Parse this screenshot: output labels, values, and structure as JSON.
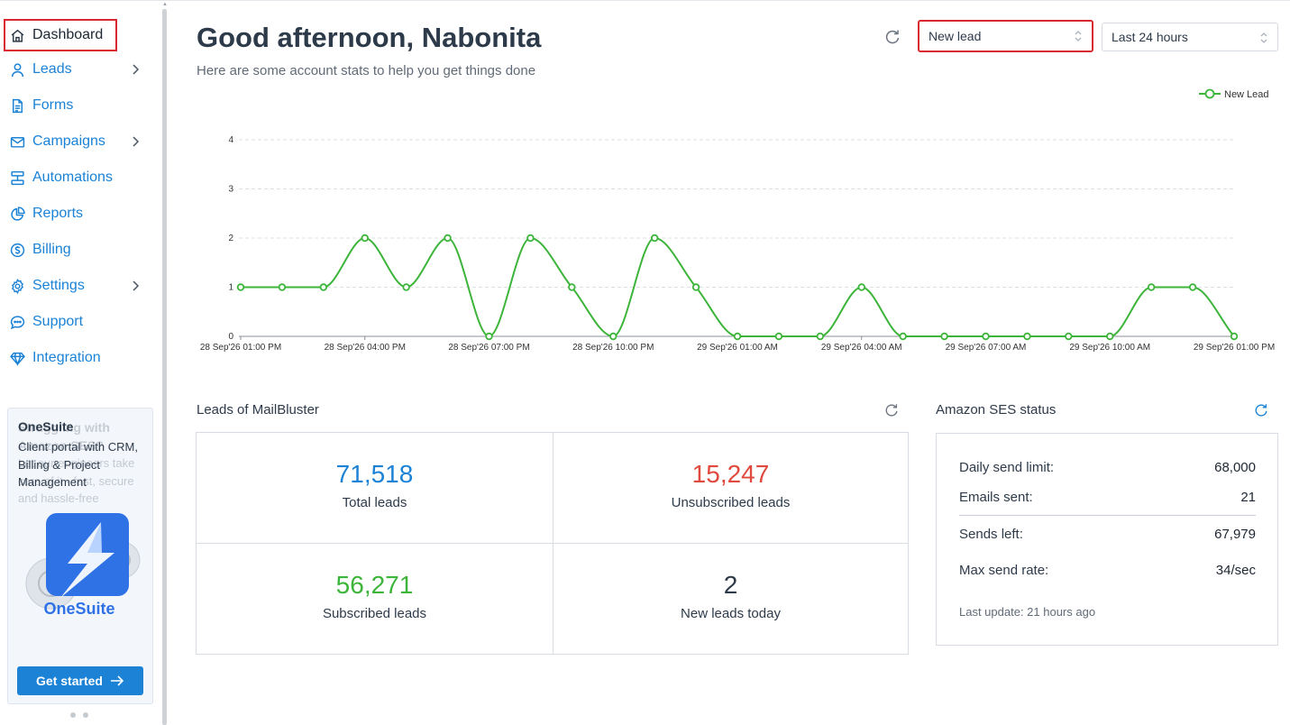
{
  "sidebar": {
    "items": [
      {
        "label": "Dashboard",
        "icon": "home-icon",
        "active": true
      },
      {
        "label": "Leads",
        "icon": "user-icon",
        "has_submenu": true
      },
      {
        "label": "Forms",
        "icon": "file-icon"
      },
      {
        "label": "Campaigns",
        "icon": "mail-icon",
        "has_submenu": true
      },
      {
        "label": "Automations",
        "icon": "flow-icon"
      },
      {
        "label": "Reports",
        "icon": "pie-chart-icon"
      },
      {
        "label": "Billing",
        "icon": "dollar-icon"
      },
      {
        "label": "Settings",
        "icon": "gear-icon",
        "has_submenu": true
      },
      {
        "label": "Support",
        "icon": "chat-icon"
      },
      {
        "label": "Integration",
        "icon": "diamond-icon"
      }
    ],
    "promo": {
      "title": "OneSuite",
      "description": "Client portal with CRM, Billing & Project Management",
      "ghost_title": "Struggling with Amazon SES?",
      "ghost_text": "Let our engineers take care of it - fast, secure and hassle-free",
      "logo_text": "OneSuite",
      "button_label": "Get started"
    }
  },
  "header": {
    "greeting": "Good afternoon, Nabonita",
    "subtitle": "Here are some account stats to help you get things done",
    "metric_select": "New lead",
    "range_select": "Last 24 hours"
  },
  "chart_data": {
    "type": "line",
    "series": [
      {
        "name": "New Lead",
        "color": "#3db43a",
        "values": [
          1,
          1,
          1,
          2,
          1,
          2,
          0,
          2,
          1,
          0,
          2,
          1,
          0,
          0,
          0,
          1,
          0,
          0,
          0,
          0,
          0,
          0,
          1,
          1,
          0
        ]
      }
    ],
    "x_tick_labels": [
      "28 Sep'26 01:00 PM",
      "28 Sep'26 04:00 PM",
      "28 Sep'26 07:00 PM",
      "28 Sep'26 10:00 PM",
      "29 Sep'26 01:00 AM",
      "29 Sep'26 04:00 AM",
      "29 Sep'26 07:00 AM",
      "29 Sep'26 10:00 AM",
      "29 Sep'26 01:00 PM"
    ],
    "y_ticks": [
      "0",
      "1",
      "2",
      "3",
      "4"
    ],
    "ylim": [
      0,
      4
    ],
    "grid": "horizontal dashed",
    "legend_position": "top-right"
  },
  "leads": {
    "title": "Leads of MailBluster",
    "stats": [
      {
        "value": "71,518",
        "label": "Total leads",
        "color": "#1b82d6"
      },
      {
        "value": "15,247",
        "label": "Unsubscribed leads",
        "color": "#e0493e"
      },
      {
        "value": "56,271",
        "label": "Subscribed leads",
        "color": "#3db43a"
      },
      {
        "value": "2",
        "label": "New leads today",
        "color": "#2d3a4a"
      }
    ]
  },
  "ses": {
    "title": "Amazon SES status",
    "rows": [
      {
        "label": "Daily send limit:",
        "value": "68,000"
      },
      {
        "label": "Emails sent:",
        "value": "21"
      },
      {
        "label": "Sends left:",
        "value": "67,979"
      },
      {
        "label": "Max send rate:",
        "value": "34/sec"
      }
    ],
    "last_update": "Last update: 21 hours ago"
  },
  "colors": {
    "accent": "#1b82d6",
    "highlight_border": "#d9282f",
    "chart_line": "#3db43a"
  }
}
